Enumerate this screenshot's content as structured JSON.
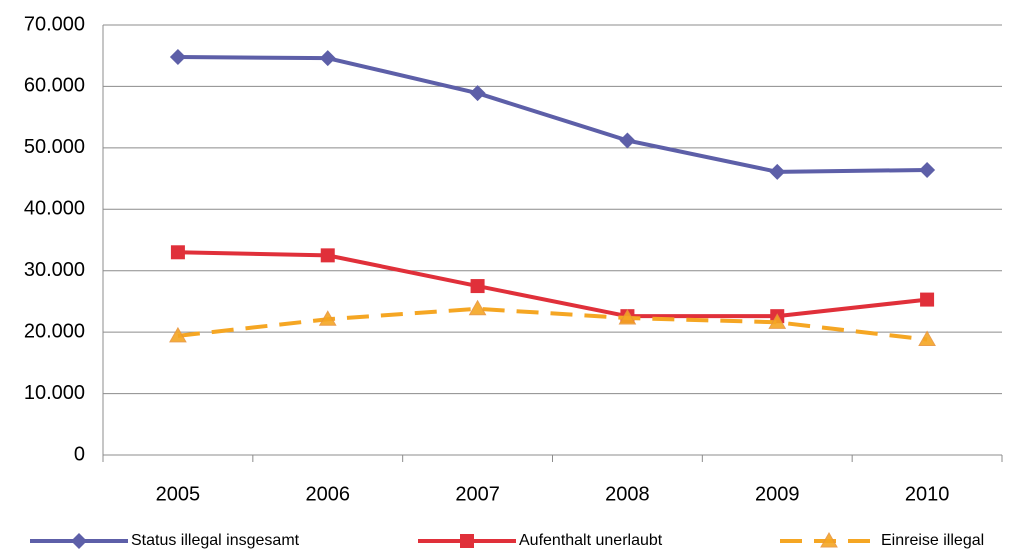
{
  "chart_data": {
    "type": "line",
    "categories": [
      "2005",
      "2006",
      "2007",
      "2008",
      "2009",
      "2010"
    ],
    "series": [
      {
        "name": "Status illegal insgesamt",
        "color": "#5d5fa8",
        "marker": "diamond",
        "dashed": false,
        "values": [
          64800,
          64600,
          58900,
          51200,
          46100,
          46400
        ]
      },
      {
        "name": "Aufenthalt unerlaubt",
        "color": "#e0303a",
        "marker": "square",
        "dashed": false,
        "values": [
          33000,
          32500,
          27500,
          22600,
          22600,
          25300
        ]
      },
      {
        "name": "Einreise illegal",
        "color": "#f5a623",
        "marker": "triangle",
        "dashed": true,
        "values": [
          19400,
          22100,
          23800,
          22300,
          21600,
          18800
        ]
      }
    ],
    "ylim": [
      0,
      70000
    ],
    "yticks": [
      0,
      {
        "value": 10000,
        "label": "10.000"
      },
      {
        "value": 20000,
        "label": "20.000"
      },
      {
        "value": 30000,
        "label": "30.000"
      },
      {
        "value": 40000,
        "label": "40.000"
      },
      {
        "value": 50000,
        "label": "50.000"
      },
      {
        "value": 60000,
        "label": "60.000"
      },
      {
        "value": 70000,
        "label": "70.000"
      }
    ],
    "grid": true,
    "legend": "bottom"
  }
}
